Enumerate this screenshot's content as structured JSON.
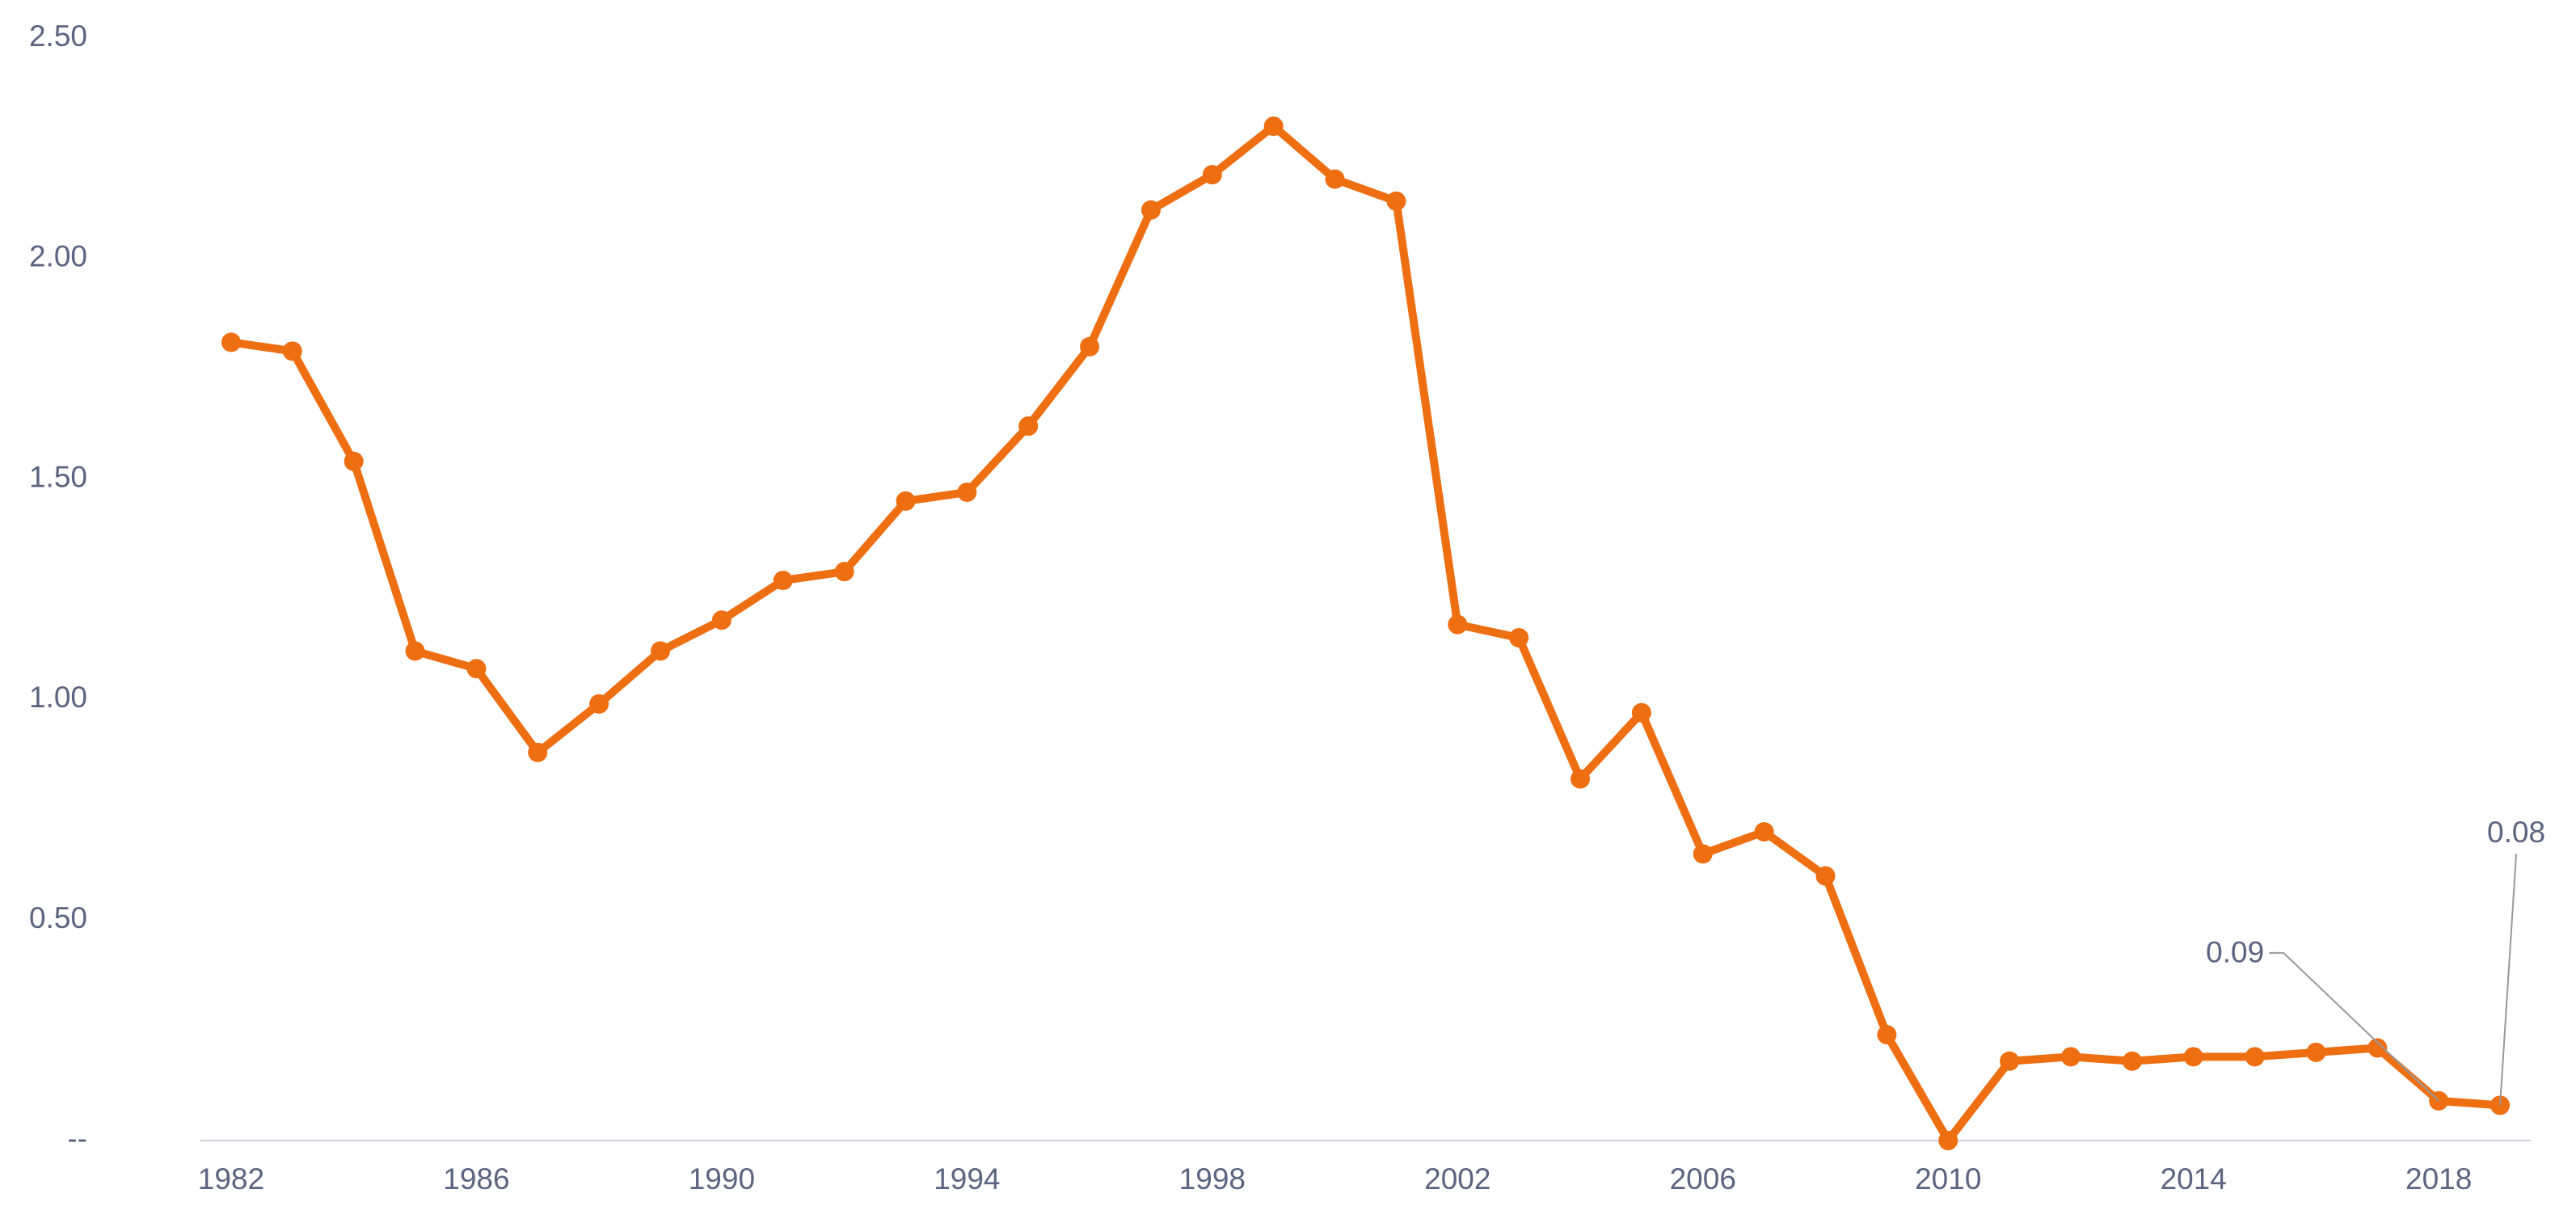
{
  "chart_data": {
    "type": "line",
    "x": [
      1982,
      1983,
      1984,
      1985,
      1986,
      1987,
      1988,
      1989,
      1990,
      1991,
      1992,
      1993,
      1994,
      1995,
      1996,
      1997,
      1998,
      1999,
      2000,
      2001,
      2002,
      2003,
      2004,
      2005,
      2006,
      2007,
      2008,
      2009,
      2010,
      2011,
      2012,
      2013,
      2014,
      2015,
      2016,
      2017,
      2018,
      2019
    ],
    "series": [
      {
        "color": "#ee6e12",
        "values": [
          1.81,
          1.79,
          1.54,
          1.11,
          1.07,
          0.88,
          0.99,
          1.11,
          1.18,
          1.27,
          1.29,
          1.45,
          1.47,
          1.62,
          1.8,
          2.11,
          2.19,
          2.3,
          2.18,
          2.13,
          1.17,
          1.14,
          0.82,
          0.97,
          0.65,
          0.7,
          0.6,
          0.24,
          0,
          0.18,
          0.19,
          0.18,
          0.19,
          0.19,
          0.2,
          0.21,
          0.09,
          0.08
        ],
        "value_labels": [
          null,
          null,
          null,
          null,
          null,
          null,
          null,
          null,
          null,
          null,
          null,
          null,
          null,
          null,
          null,
          null,
          null,
          null,
          null,
          null,
          null,
          null,
          null,
          null,
          null,
          null,
          null,
          null,
          null,
          null,
          null,
          null,
          null,
          null,
          null,
          null,
          "0.09",
          "0.08"
        ]
      }
    ],
    "xlim": [
      1981.5,
      2019.5
    ],
    "xticks": [
      1982,
      1986,
      1990,
      1994,
      1998,
      2002,
      2006,
      2010,
      2014,
      2018
    ],
    "ylim": [
      0,
      2.5
    ],
    "yticks": [
      {
        "value": 0,
        "label": "--"
      },
      {
        "value": 0.5,
        "label": "0.50"
      },
      {
        "value": 1,
        "label": "1.00"
      },
      {
        "value": 1.5,
        "label": "1.50"
      },
      {
        "value": 2,
        "label": "2.00"
      },
      {
        "value": 2.5,
        "label": "2.50"
      }
    ]
  }
}
